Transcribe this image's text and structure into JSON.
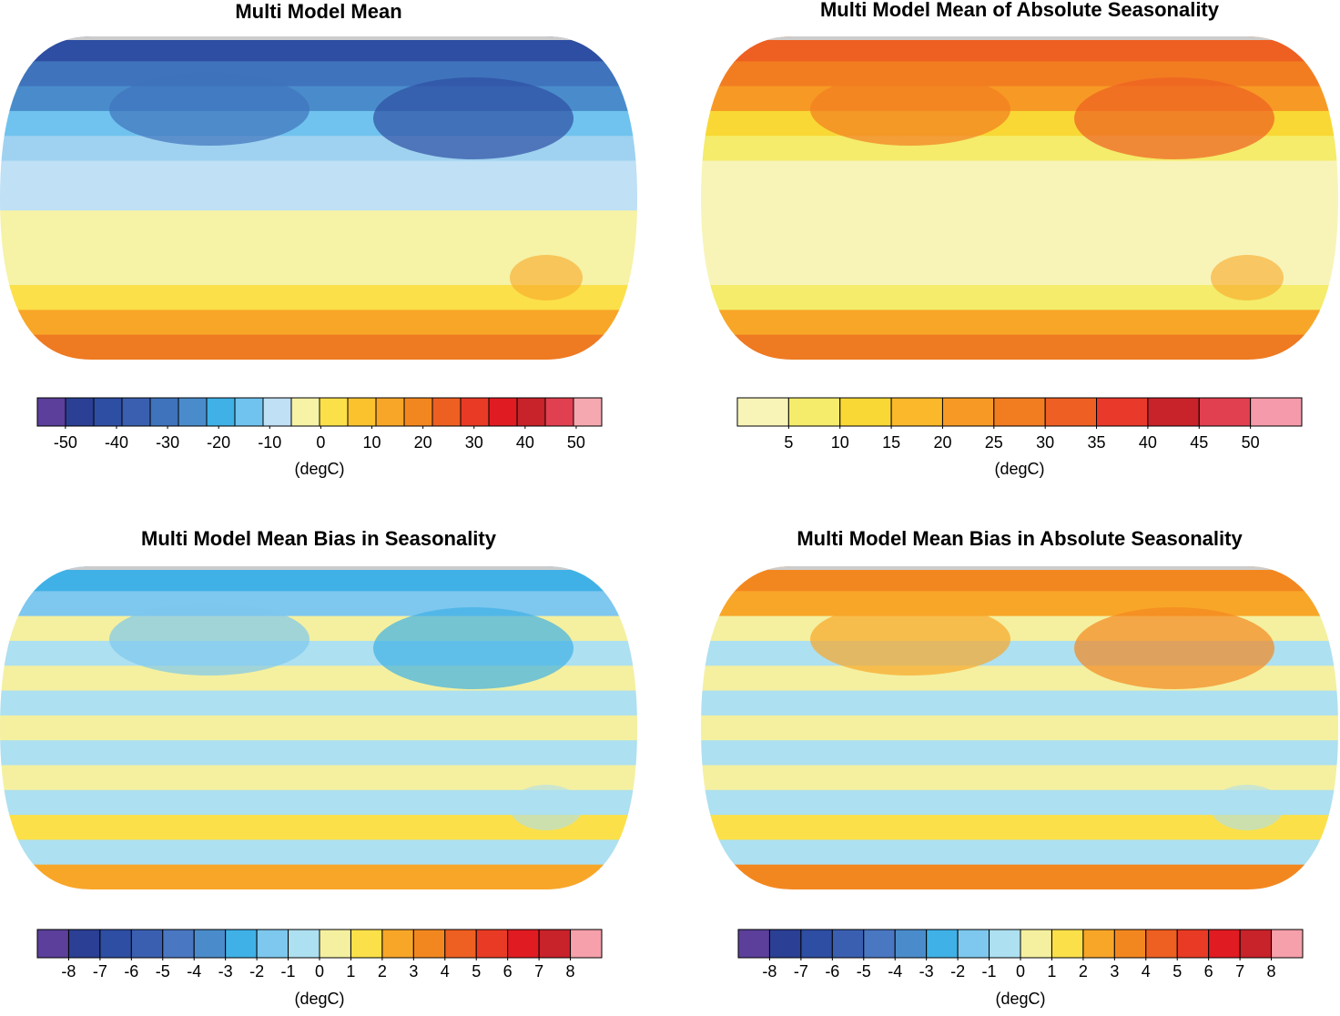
{
  "panels": [
    {
      "title": "Multi Model Mean",
      "colorbar": {
        "lim": [
          -55.5,
          55
        ],
        "ticks": [
          -50,
          -40,
          -30,
          -20,
          -10,
          0,
          10,
          20,
          30,
          40,
          50
        ],
        "unit": "(degC)",
        "colors": [
          "#5b3f9a",
          "#2b3f94",
          "#2e4ea3",
          "#3a5fb0",
          "#3f73bc",
          "#4a8ccb",
          "#3fb1e6",
          "#6fc3ee",
          "#bfe0f5",
          "#f6f2a6",
          "#fbe04a",
          "#fbc22e",
          "#f8a628",
          "#f3871f",
          "#ee5f22",
          "#e83a25",
          "#e11b22",
          "#c8222a",
          "#e04050",
          "#f5a8b0"
        ]
      }
    },
    {
      "title": "Multi Model Mean of Absolute Seasonality",
      "colorbar": {
        "lim": [
          0,
          55
        ],
        "ticks": [
          5,
          10,
          15,
          20,
          25,
          30,
          35,
          40,
          45,
          50
        ],
        "unit": "(degC)",
        "colors": [
          "#f8f4b8",
          "#f4ec6a",
          "#f9d835",
          "#fbb82a",
          "#f79a25",
          "#f27d21",
          "#ee5f23",
          "#e8392a",
          "#c8222a",
          "#e04050",
          "#f59aaa"
        ]
      }
    },
    {
      "title": "Multi Model Mean Bias in Seasonality",
      "colorbar": {
        "lim": [
          -9,
          9
        ],
        "ticks": [
          -8,
          -7,
          -6,
          -5,
          -4,
          -3,
          -2,
          -1,
          0,
          1,
          2,
          3,
          4,
          5,
          6,
          7,
          8
        ],
        "unit": "(degC)",
        "colors": [
          "#5b3f9a",
          "#2b3f94",
          "#2e4ea3",
          "#3a5fb0",
          "#4a77c2",
          "#4a8ccb",
          "#3fb1e6",
          "#7ec7ee",
          "#ade0f0",
          "#f4f0a0",
          "#fbe04a",
          "#f8a628",
          "#f3871f",
          "#ee5f22",
          "#e83a25",
          "#e11b22",
          "#c8222a",
          "#f5a0aa"
        ]
      }
    },
    {
      "title": "Multi Model Mean Bias in Absolute Seasonality",
      "colorbar": {
        "lim": [
          -9,
          9
        ],
        "ticks": [
          -8,
          -7,
          -6,
          -5,
          -4,
          -3,
          -2,
          -1,
          0,
          1,
          2,
          3,
          4,
          5,
          6,
          7,
          8
        ],
        "unit": "(degC)",
        "colors": [
          "#5b3f9a",
          "#2b3f94",
          "#2e4ea3",
          "#3a5fb0",
          "#4a77c2",
          "#4a8ccb",
          "#3fb1e6",
          "#7ec7ee",
          "#ade0f0",
          "#f4f0a0",
          "#fbe04a",
          "#f8a628",
          "#f3871f",
          "#ee5f22",
          "#e83a25",
          "#e11b22",
          "#c8222a",
          "#f5a0aa"
        ]
      }
    }
  ]
}
